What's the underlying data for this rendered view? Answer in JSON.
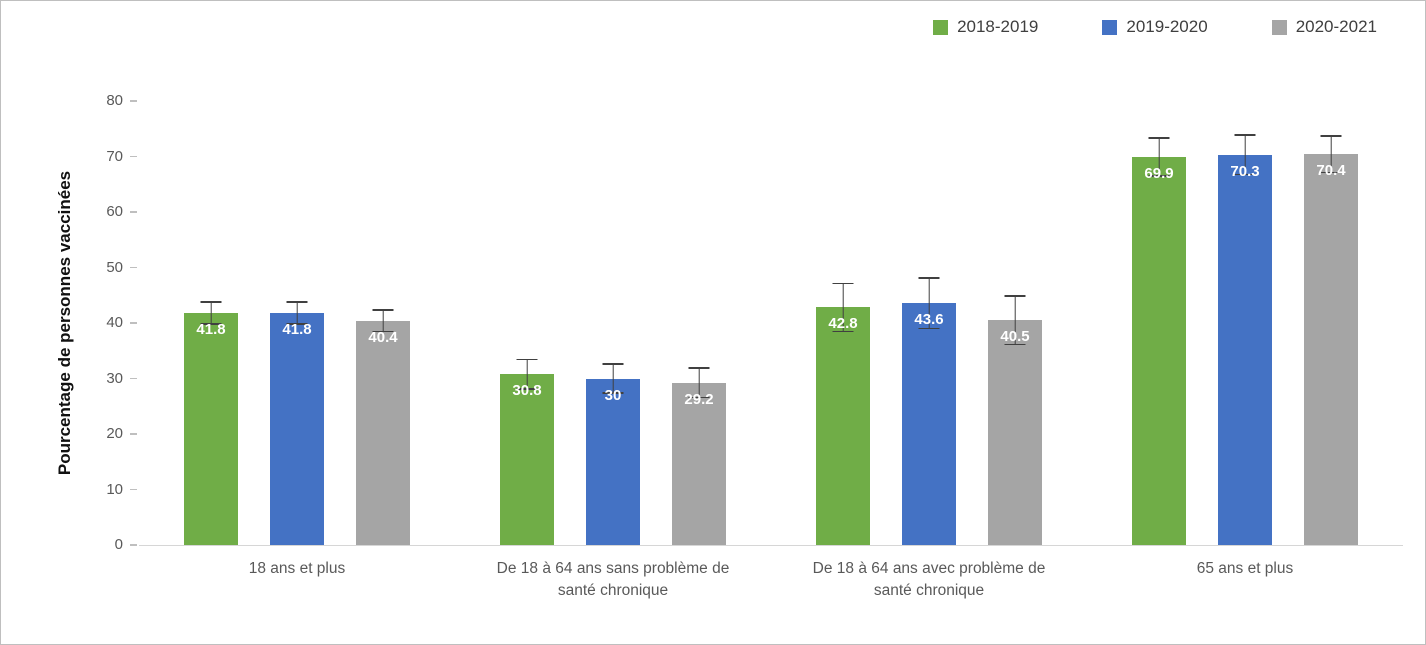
{
  "chart_data": {
    "type": "bar",
    "title": "",
    "xlabel": "",
    "ylabel": "Pourcentage de personnes vaccinées",
    "ylim": [
      0,
      80
    ],
    "yticks": [
      0,
      10,
      20,
      30,
      40,
      50,
      60,
      70,
      80
    ],
    "grid": false,
    "legend_position": "top-right",
    "error_bars": true,
    "error_bar_color": "#404040",
    "axis_text_color": "#595959",
    "categories": [
      "18 ans et plus",
      "De 18 à 64 ans sans problème de santé chronique",
      "De 18 à 64 ans avec problème de santé chronique",
      "65 ans et plus"
    ],
    "series": [
      {
        "name": "2018-2019",
        "color": "#70AD47",
        "values": [
          41.8,
          30.8,
          42.8,
          69.9
        ],
        "labels": [
          "41.8",
          "30.8",
          "42.8",
          "69.9"
        ],
        "errors": [
          2.1,
          2.8,
          4.5,
          3.6
        ]
      },
      {
        "name": "2019-2020",
        "color": "#4472C4",
        "values": [
          41.8,
          30,
          43.6,
          70.3
        ],
        "labels": [
          "41.8",
          "30",
          "43.6",
          "70.3"
        ],
        "errors": [
          2.1,
          2.8,
          4.7,
          3.7
        ]
      },
      {
        "name": "2020-2021",
        "color": "#A5A5A5",
        "values": [
          40.4,
          29.2,
          40.5,
          70.4
        ],
        "labels": [
          "40.4",
          "29.2",
          "40.5",
          "70.4"
        ],
        "errors": [
          2.1,
          2.8,
          4.5,
          3.4
        ]
      }
    ]
  }
}
